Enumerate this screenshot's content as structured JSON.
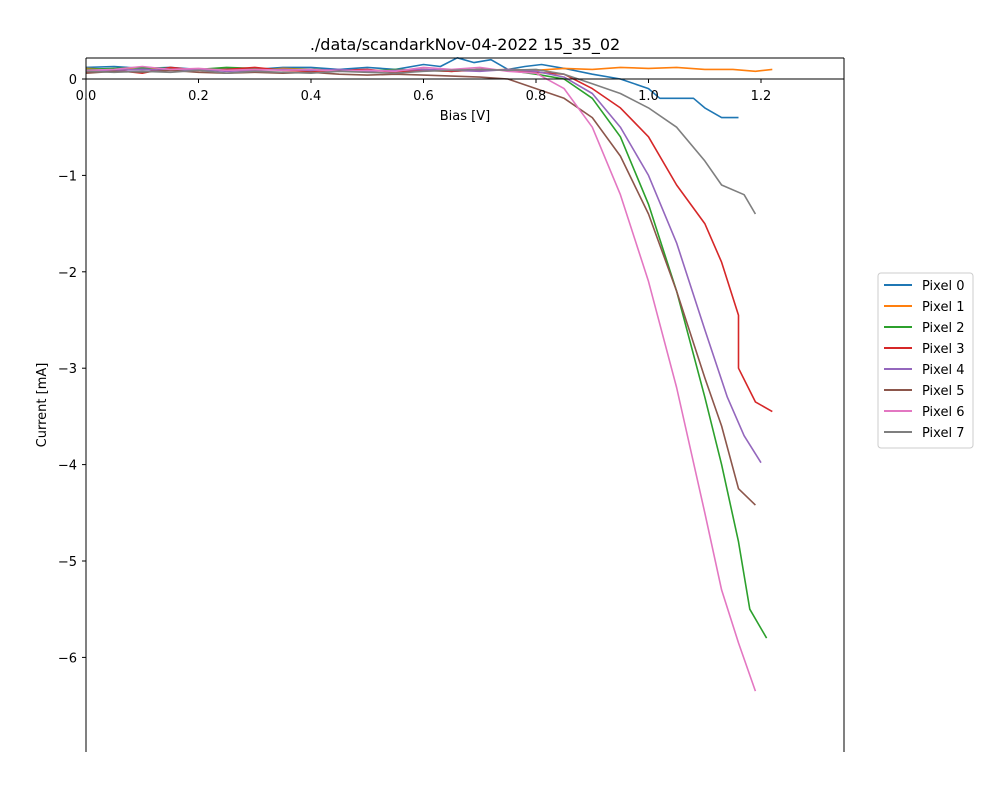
{
  "chart_data": {
    "type": "line",
    "title": "./data/scandarkNov-04-2022 15_35_02",
    "xlabel": "Bias [V]",
    "ylabel": "Current [mA]",
    "xlim": [
      0.0,
      1.34
    ],
    "ylim": [
      -7.0,
      0.22
    ],
    "x_ticks": [
      "0.0",
      "0.2",
      "0.4",
      "0.6",
      "0.8",
      "1.0",
      "1.2"
    ],
    "y_ticks": [
      "0",
      "−1",
      "−2",
      "−3",
      "−4",
      "−5",
      "−6"
    ],
    "legend_position": "right",
    "series": [
      {
        "name": "Pixel 0",
        "color": "#1f77b4",
        "points": [
          [
            0.0,
            0.12
          ],
          [
            0.05,
            0.13
          ],
          [
            0.1,
            0.11
          ],
          [
            0.15,
            0.12
          ],
          [
            0.2,
            0.1
          ],
          [
            0.25,
            0.11
          ],
          [
            0.3,
            0.1
          ],
          [
            0.35,
            0.12
          ],
          [
            0.4,
            0.12
          ],
          [
            0.45,
            0.1
          ],
          [
            0.5,
            0.12
          ],
          [
            0.55,
            0.1
          ],
          [
            0.6,
            0.15
          ],
          [
            0.63,
            0.13
          ],
          [
            0.66,
            0.22
          ],
          [
            0.69,
            0.17
          ],
          [
            0.72,
            0.2
          ],
          [
            0.75,
            0.1
          ],
          [
            0.78,
            0.13
          ],
          [
            0.81,
            0.15
          ],
          [
            0.85,
            0.11
          ],
          [
            0.9,
            0.05
          ],
          [
            0.95,
            0.0
          ],
          [
            1.0,
            -0.1
          ],
          [
            1.02,
            -0.2
          ],
          [
            1.05,
            -0.2
          ],
          [
            1.08,
            -0.2
          ],
          [
            1.1,
            -0.3
          ],
          [
            1.13,
            -0.4
          ],
          [
            1.16,
            -0.4
          ]
        ]
      },
      {
        "name": "Pixel 1",
        "color": "#ff7f0e",
        "points": [
          [
            0.0,
            0.11
          ],
          [
            0.05,
            0.1
          ],
          [
            0.1,
            0.12
          ],
          [
            0.15,
            0.1
          ],
          [
            0.2,
            0.09
          ],
          [
            0.25,
            0.1
          ],
          [
            0.3,
            0.09
          ],
          [
            0.35,
            0.11
          ],
          [
            0.4,
            0.1
          ],
          [
            0.45,
            0.09
          ],
          [
            0.5,
            0.08
          ],
          [
            0.55,
            0.09
          ],
          [
            0.6,
            0.1
          ],
          [
            0.65,
            0.08
          ],
          [
            0.7,
            0.09
          ],
          [
            0.75,
            0.1
          ],
          [
            0.8,
            0.09
          ],
          [
            0.85,
            0.11
          ],
          [
            0.9,
            0.1
          ],
          [
            0.95,
            0.12
          ],
          [
            1.0,
            0.11
          ],
          [
            1.05,
            0.12
          ],
          [
            1.1,
            0.1
          ],
          [
            1.15,
            0.1
          ],
          [
            1.19,
            0.08
          ],
          [
            1.22,
            0.1
          ]
        ]
      },
      {
        "name": "Pixel 2",
        "color": "#2ca02c",
        "points": [
          [
            0.0,
            0.1
          ],
          [
            0.05,
            0.11
          ],
          [
            0.1,
            0.12
          ],
          [
            0.15,
            0.11
          ],
          [
            0.2,
            0.1
          ],
          [
            0.25,
            0.12
          ],
          [
            0.3,
            0.11
          ],
          [
            0.35,
            0.1
          ],
          [
            0.4,
            0.1
          ],
          [
            0.45,
            0.09
          ],
          [
            0.5,
            0.08
          ],
          [
            0.55,
            0.1
          ],
          [
            0.6,
            0.09
          ],
          [
            0.65,
            0.08
          ],
          [
            0.7,
            0.1
          ],
          [
            0.75,
            0.09
          ],
          [
            0.8,
            0.05
          ],
          [
            0.85,
            0.0
          ],
          [
            0.9,
            -0.2
          ],
          [
            0.95,
            -0.6
          ],
          [
            1.0,
            -1.3
          ],
          [
            1.05,
            -2.2
          ],
          [
            1.1,
            -3.3
          ],
          [
            1.13,
            -4.0
          ],
          [
            1.16,
            -4.8
          ],
          [
            1.18,
            -5.5
          ],
          [
            1.21,
            -5.8
          ]
        ]
      },
      {
        "name": "Pixel 3",
        "color": "#d62728",
        "points": [
          [
            0.0,
            0.07
          ],
          [
            0.05,
            0.09
          ],
          [
            0.1,
            0.06
          ],
          [
            0.15,
            0.12
          ],
          [
            0.2,
            0.09
          ],
          [
            0.25,
            0.1
          ],
          [
            0.3,
            0.12
          ],
          [
            0.35,
            0.09
          ],
          [
            0.4,
            0.08
          ],
          [
            0.45,
            0.09
          ],
          [
            0.5,
            0.1
          ],
          [
            0.55,
            0.07
          ],
          [
            0.6,
            0.09
          ],
          [
            0.65,
            0.08
          ],
          [
            0.7,
            0.1
          ],
          [
            0.75,
            0.09
          ],
          [
            0.8,
            0.07
          ],
          [
            0.85,
            0.05
          ],
          [
            0.9,
            -0.1
          ],
          [
            0.95,
            -0.3
          ],
          [
            1.0,
            -0.6
          ],
          [
            1.05,
            -1.1
          ],
          [
            1.1,
            -1.5
          ],
          [
            1.13,
            -1.9
          ],
          [
            1.16,
            -2.45
          ],
          [
            1.16,
            -3.0
          ],
          [
            1.19,
            -3.35
          ],
          [
            1.22,
            -3.45
          ]
        ]
      },
      {
        "name": "Pixel 4",
        "color": "#9467bd",
        "points": [
          [
            0.0,
            0.08
          ],
          [
            0.05,
            0.09
          ],
          [
            0.1,
            0.1
          ],
          [
            0.15,
            0.09
          ],
          [
            0.2,
            0.1
          ],
          [
            0.25,
            0.08
          ],
          [
            0.3,
            0.09
          ],
          [
            0.35,
            0.1
          ],
          [
            0.4,
            0.09
          ],
          [
            0.45,
            0.1
          ],
          [
            0.5,
            0.08
          ],
          [
            0.55,
            0.09
          ],
          [
            0.6,
            0.1
          ],
          [
            0.65,
            0.09
          ],
          [
            0.7,
            0.08
          ],
          [
            0.75,
            0.1
          ],
          [
            0.8,
            0.08
          ],
          [
            0.85,
            0.02
          ],
          [
            0.9,
            -0.15
          ],
          [
            0.95,
            -0.5
          ],
          [
            1.0,
            -1.0
          ],
          [
            1.05,
            -1.7
          ],
          [
            1.1,
            -2.6
          ],
          [
            1.14,
            -3.3
          ],
          [
            1.17,
            -3.7
          ],
          [
            1.2,
            -3.98
          ]
        ]
      },
      {
        "name": "Pixel 5",
        "color": "#8c564b",
        "points": [
          [
            0.0,
            0.06
          ],
          [
            0.05,
            0.08
          ],
          [
            0.1,
            0.07
          ],
          [
            0.15,
            0.09
          ],
          [
            0.2,
            0.07
          ],
          [
            0.25,
            0.06
          ],
          [
            0.3,
            0.07
          ],
          [
            0.35,
            0.06
          ],
          [
            0.4,
            0.07
          ],
          [
            0.45,
            0.05
          ],
          [
            0.5,
            0.04
          ],
          [
            0.55,
            0.05
          ],
          [
            0.6,
            0.04
          ],
          [
            0.65,
            0.03
          ],
          [
            0.7,
            0.02
          ],
          [
            0.75,
            0.0
          ],
          [
            0.8,
            -0.1
          ],
          [
            0.85,
            -0.2
          ],
          [
            0.9,
            -0.4
          ],
          [
            0.95,
            -0.8
          ],
          [
            1.0,
            -1.4
          ],
          [
            1.05,
            -2.2
          ],
          [
            1.1,
            -3.1
          ],
          [
            1.13,
            -3.6
          ],
          [
            1.16,
            -4.25
          ],
          [
            1.19,
            -4.42
          ]
        ]
      },
      {
        "name": "Pixel 6",
        "color": "#e377c2",
        "points": [
          [
            0.0,
            0.09
          ],
          [
            0.05,
            0.1
          ],
          [
            0.1,
            0.13
          ],
          [
            0.15,
            0.1
          ],
          [
            0.2,
            0.11
          ],
          [
            0.25,
            0.09
          ],
          [
            0.3,
            0.1
          ],
          [
            0.35,
            0.09
          ],
          [
            0.4,
            0.1
          ],
          [
            0.45,
            0.08
          ],
          [
            0.5,
            0.09
          ],
          [
            0.55,
            0.08
          ],
          [
            0.6,
            0.12
          ],
          [
            0.65,
            0.1
          ],
          [
            0.7,
            0.12
          ],
          [
            0.75,
            0.08
          ],
          [
            0.8,
            0.06
          ],
          [
            0.85,
            -0.1
          ],
          [
            0.9,
            -0.5
          ],
          [
            0.95,
            -1.2
          ],
          [
            1.0,
            -2.1
          ],
          [
            1.05,
            -3.2
          ],
          [
            1.1,
            -4.5
          ],
          [
            1.13,
            -5.3
          ],
          [
            1.16,
            -5.85
          ],
          [
            1.19,
            -6.35
          ]
        ]
      },
      {
        "name": "Pixel 7",
        "color": "#7f7f7f",
        "points": [
          [
            0.0,
            0.08
          ],
          [
            0.05,
            0.07
          ],
          [
            0.1,
            0.08
          ],
          [
            0.15,
            0.07
          ],
          [
            0.2,
            0.09
          ],
          [
            0.25,
            0.06
          ],
          [
            0.3,
            0.08
          ],
          [
            0.35,
            0.07
          ],
          [
            0.4,
            0.06
          ],
          [
            0.45,
            0.08
          ],
          [
            0.5,
            0.07
          ],
          [
            0.55,
            0.06
          ],
          [
            0.6,
            0.08
          ],
          [
            0.65,
            0.09
          ],
          [
            0.7,
            0.1
          ],
          [
            0.75,
            0.09
          ],
          [
            0.8,
            0.1
          ],
          [
            0.85,
            0.05
          ],
          [
            0.9,
            -0.05
          ],
          [
            0.95,
            -0.15
          ],
          [
            1.0,
            -0.3
          ],
          [
            1.05,
            -0.5
          ],
          [
            1.1,
            -0.85
          ],
          [
            1.13,
            -1.1
          ],
          [
            1.17,
            -1.2
          ],
          [
            1.19,
            -1.4
          ]
        ]
      }
    ]
  }
}
